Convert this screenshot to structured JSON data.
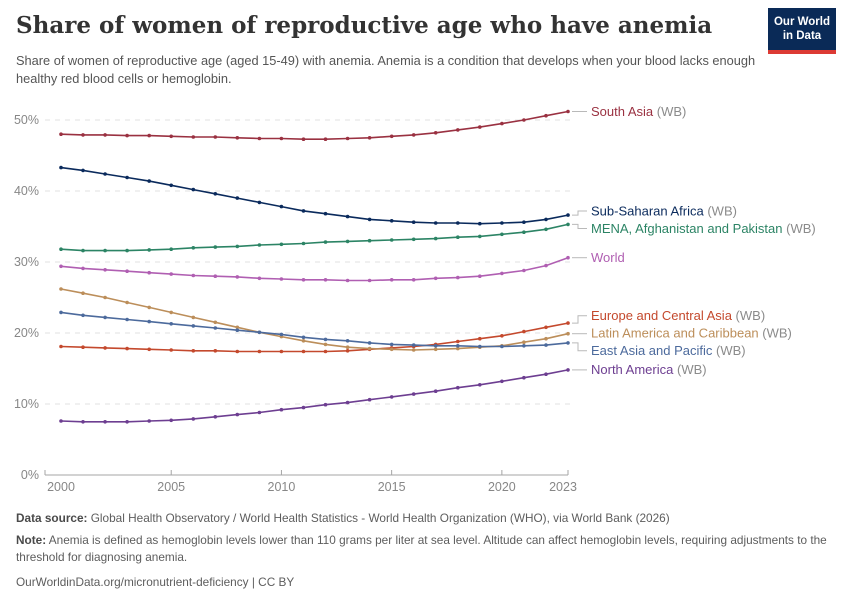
{
  "logo": {
    "line1": "Our World",
    "line2": "in Data",
    "bg_color": "#0a2a57",
    "stripe_color": "#dc3a34"
  },
  "header": {
    "title": "Share of women of reproductive age who have anemia",
    "subtitle": "Share of women of reproductive age (aged 15-49) with anemia. Anemia is a condition that develops when your blood lacks enough healthy red blood cells or hemoglobin."
  },
  "chart_data": {
    "type": "line",
    "title": "Share of women of reproductive age who have anemia",
    "xlabel": "",
    "ylabel": "",
    "x": [
      2000,
      2001,
      2002,
      2003,
      2004,
      2005,
      2006,
      2007,
      2008,
      2009,
      2010,
      2011,
      2012,
      2013,
      2014,
      2015,
      2016,
      2017,
      2018,
      2019,
      2020,
      2021,
      2022,
      2023
    ],
    "xticks": [
      2000,
      2005,
      2010,
      2015,
      2020,
      2023
    ],
    "yticks": [
      0,
      10,
      20,
      30,
      40,
      50
    ],
    "ytick_suffix": "%",
    "ylim": [
      0,
      52
    ],
    "grid": "horizontal-dashed",
    "legend_position": "right-line-labels",
    "series": [
      {
        "name": "South Asia",
        "suffix": " (WB)",
        "color": "#9a3141",
        "values": [
          48.0,
          47.9,
          47.9,
          47.8,
          47.8,
          47.7,
          47.6,
          47.6,
          47.5,
          47.4,
          47.4,
          47.3,
          47.3,
          47.4,
          47.5,
          47.7,
          47.9,
          48.2,
          48.6,
          49.0,
          49.5,
          50.0,
          50.6,
          51.2
        ]
      },
      {
        "name": "Sub-Saharan Africa",
        "suffix": " (WB)",
        "color": "#0a2a5c",
        "values": [
          43.3,
          42.9,
          42.4,
          41.9,
          41.4,
          40.8,
          40.2,
          39.6,
          39.0,
          38.4,
          37.8,
          37.2,
          36.8,
          36.4,
          36.0,
          35.8,
          35.6,
          35.5,
          35.5,
          35.4,
          35.5,
          35.6,
          36.0,
          36.6
        ]
      },
      {
        "name": "MENA, Afghanistan and Pakistan",
        "suffix": " (WB)",
        "color": "#2c8465",
        "values": [
          31.8,
          31.6,
          31.6,
          31.6,
          31.7,
          31.8,
          32.0,
          32.1,
          32.2,
          32.4,
          32.5,
          32.6,
          32.8,
          32.9,
          33.0,
          33.1,
          33.2,
          33.3,
          33.5,
          33.6,
          33.9,
          34.2,
          34.6,
          35.3
        ]
      },
      {
        "name": "World",
        "suffix": "",
        "color": "#b05fb2",
        "values": [
          29.4,
          29.1,
          28.9,
          28.7,
          28.5,
          28.3,
          28.1,
          28.0,
          27.9,
          27.7,
          27.6,
          27.5,
          27.5,
          27.4,
          27.4,
          27.5,
          27.5,
          27.7,
          27.8,
          28.0,
          28.4,
          28.8,
          29.5,
          30.6
        ]
      },
      {
        "name": "Europe and Central Asia",
        "suffix": " (WB)",
        "color": "#c4492d",
        "values": [
          18.1,
          18.0,
          17.9,
          17.8,
          17.7,
          17.6,
          17.5,
          17.5,
          17.4,
          17.4,
          17.4,
          17.4,
          17.4,
          17.5,
          17.7,
          17.9,
          18.1,
          18.4,
          18.8,
          19.2,
          19.6,
          20.2,
          20.8,
          21.4
        ]
      },
      {
        "name": "Latin America and Caribbean",
        "suffix": " (WB)",
        "color": "#bc8e5a",
        "values": [
          26.2,
          25.6,
          25.0,
          24.3,
          23.6,
          22.9,
          22.2,
          21.5,
          20.8,
          20.1,
          19.5,
          18.9,
          18.4,
          18.0,
          17.8,
          17.7,
          17.6,
          17.7,
          17.8,
          18.0,
          18.2,
          18.7,
          19.2,
          19.9
        ]
      },
      {
        "name": "East Asia and Pacific",
        "suffix": " (WB)",
        "color": "#4c6a9c",
        "values": [
          22.9,
          22.5,
          22.2,
          21.9,
          21.6,
          21.3,
          21.0,
          20.7,
          20.4,
          20.1,
          19.8,
          19.4,
          19.1,
          18.9,
          18.6,
          18.4,
          18.3,
          18.2,
          18.2,
          18.1,
          18.1,
          18.2,
          18.3,
          18.6
        ]
      },
      {
        "name": "North America",
        "suffix": " (WB)",
        "color": "#6d3e91",
        "values": [
          7.6,
          7.5,
          7.5,
          7.5,
          7.6,
          7.7,
          7.9,
          8.2,
          8.5,
          8.8,
          9.2,
          9.5,
          9.9,
          10.2,
          10.6,
          11.0,
          11.4,
          11.8,
          12.3,
          12.7,
          13.2,
          13.7,
          14.2,
          14.8
        ]
      }
    ],
    "colors": {
      "gridline": "#e2e2e2",
      "axis": "#a5a5a5",
      "tick_label": "#878787",
      "label_suffix": "#8b8b8b",
      "connector": "#a8a8a8"
    }
  },
  "footer": {
    "data_source_label": "Data source:",
    "data_source_text": " Global Health Observatory / World Health Statistics - World Health Organization (WHO), via World Bank (2026)",
    "note_label": "Note:",
    "note_text": " Anemia is defined as hemoglobin levels lower than 110 grams per liter at sea level. Altitude can affect hemoglobin levels, requiring adjustments to the threshold for diagnosing anemia.",
    "url": "OurWorldinData.org/micronutrient-deficiency",
    "separator": " | ",
    "license": "CC BY"
  }
}
